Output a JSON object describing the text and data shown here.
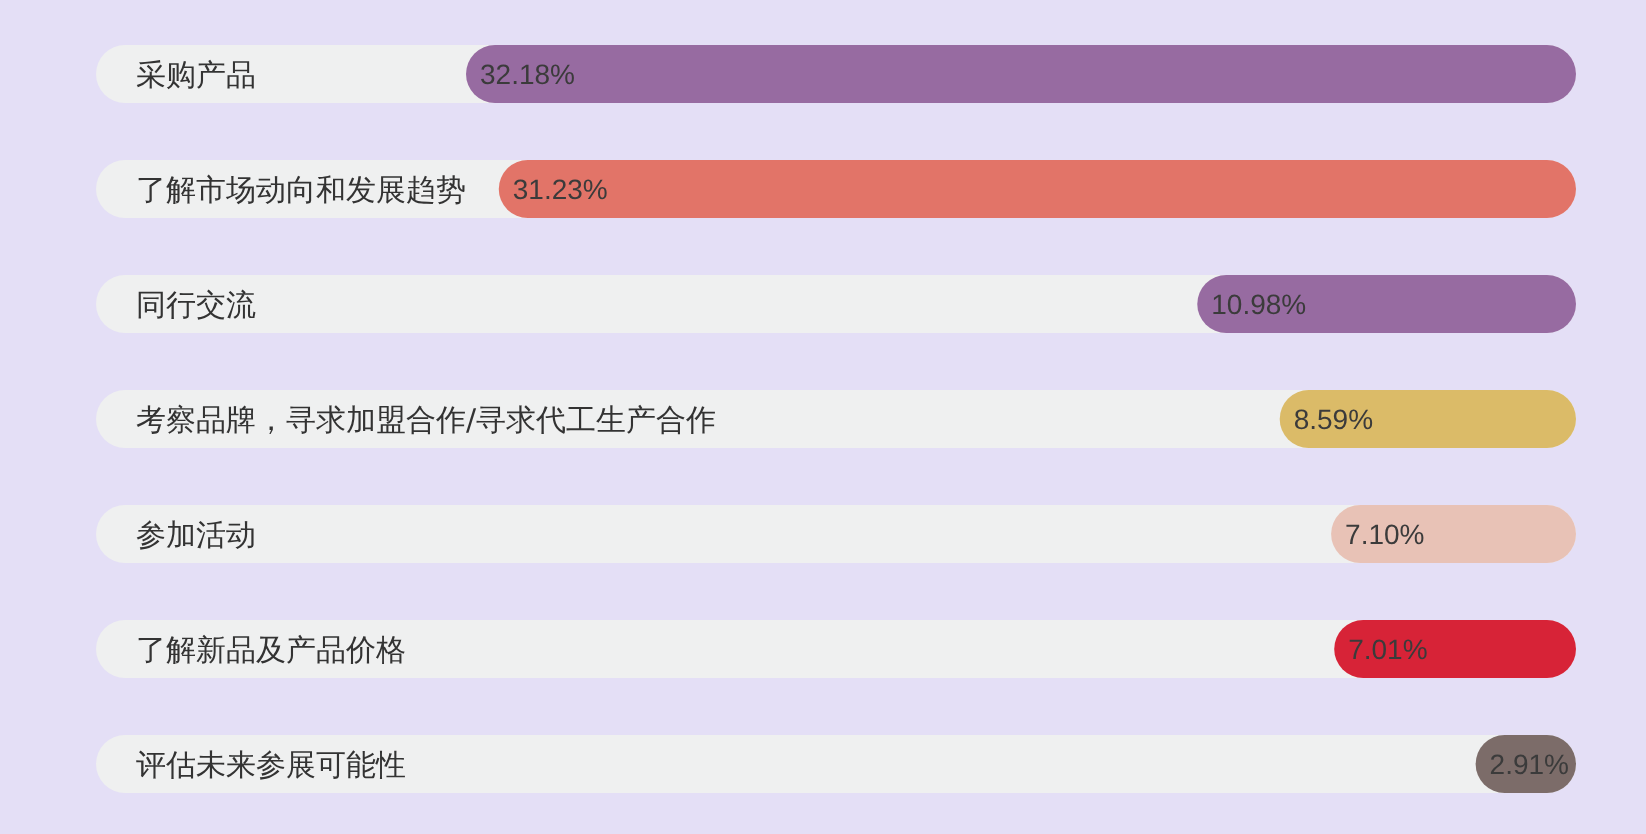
{
  "chart_data": {
    "type": "bar",
    "orientation": "horizontal",
    "categories": [
      "采购产品",
      "了解市场动向和发展趋势",
      "同行交流",
      "考察品牌，寻求加盟合作/寻求代工生产合作",
      "参加活动",
      "了解新品及产品价格",
      "评估未来参展可能性"
    ],
    "values": [
      32.18,
      31.23,
      10.98,
      8.59,
      7.1,
      7.01,
      2.91
    ],
    "colors": [
      "#976ba1",
      "#e27468",
      "#976ba1",
      "#dbbb68",
      "#e8c2b6",
      "#d72337",
      "#7c6c69"
    ],
    "value_labels": [
      "32.18%",
      "31.23%",
      "10.98%",
      "8.59%",
      "7.10%",
      "7.01%",
      "2.91%"
    ]
  }
}
